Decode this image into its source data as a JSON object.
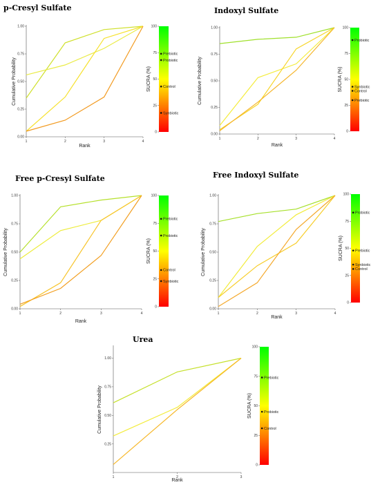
{
  "colors": {
    "gradient_top": "#00ff00",
    "gradient_mid": "#ffff00",
    "gradient_bottom": "#ff0000",
    "dot": "#111111"
  },
  "chart_data": [
    {
      "type": "line",
      "title": "p-Cresyl Sulfate",
      "xlabel": "Rank",
      "ylabel": "Cumulative Probability",
      "x": [
        1,
        2,
        3,
        4
      ],
      "xlim": [
        1,
        4
      ],
      "ylim": [
        0,
        1
      ],
      "x_ticks": [
        "1",
        "2",
        "3",
        "4"
      ],
      "y_ticks": [
        "0.00",
        "0.25",
        "0.50",
        "0.75",
        "1.00"
      ],
      "series": [
        {
          "values": [
            0.35,
            0.85,
            0.97,
            1.0
          ],
          "color": "#cfe02a"
        },
        {
          "values": [
            0.56,
            0.65,
            0.8,
            1.0
          ],
          "color": "#eaeb45"
        },
        {
          "values": [
            0.05,
            0.36,
            0.89,
            1.0
          ],
          "color": "#f6e12c"
        },
        {
          "values": [
            0.05,
            0.15,
            0.36,
            1.0
          ],
          "color": "#f29a1f"
        }
      ],
      "sucra": {
        "label": "SUCRA (%)",
        "ticks": [
          "0",
          "25",
          "50",
          "75",
          "100"
        ],
        "points": [
          {
            "name": "Prebiotic",
            "value": 74
          },
          {
            "name": "Probiotic",
            "value": 68
          },
          {
            "name": "Control",
            "value": 43
          },
          {
            "name": "Synbiotic",
            "value": 18
          }
        ]
      }
    },
    {
      "type": "line",
      "title": "Indoxyl Sulfate",
      "xlabel": "Rank",
      "ylabel": "Cumulative Probability",
      "x": [
        1,
        2,
        3,
        4
      ],
      "xlim": [
        1,
        4
      ],
      "ylim": [
        0,
        1
      ],
      "x_ticks": [
        "1",
        "2",
        "3",
        "4"
      ],
      "y_ticks": [
        "0.00",
        "0.25",
        "0.50",
        "0.75",
        "1.00"
      ],
      "series": [
        {
          "values": [
            0.85,
            0.89,
            0.91,
            1.0
          ],
          "color": "#9fe02a"
        },
        {
          "values": [
            0.08,
            0.53,
            0.66,
            1.0
          ],
          "color": "#f4ec3a"
        },
        {
          "values": [
            0.04,
            0.28,
            0.8,
            1.0
          ],
          "color": "#f7d52a"
        },
        {
          "values": [
            0.03,
            0.3,
            0.6,
            1.0
          ],
          "color": "#f5b52a"
        }
      ],
      "sucra": {
        "label": "SUCRA (%)",
        "ticks": [
          "0",
          "25",
          "50",
          "75",
          "100"
        ],
        "points": [
          {
            "name": "Probiotic",
            "value": 88
          },
          {
            "name": "Synbiotic",
            "value": 43
          },
          {
            "name": "Control",
            "value": 39
          },
          {
            "name": "Prebiotic",
            "value": 30
          }
        ]
      }
    },
    {
      "type": "line",
      "title": "Free p-Cresyl Sulfate",
      "xlabel": "Rank",
      "ylabel": "Cumulative Probability",
      "x": [
        1,
        2,
        3,
        4
      ],
      "xlim": [
        1,
        4
      ],
      "ylim": [
        0,
        1
      ],
      "x_ticks": [
        "1",
        "2",
        "3",
        "4"
      ],
      "y_ticks": [
        "0.00",
        "0.25",
        "0.50",
        "0.75",
        "1.00"
      ],
      "series": [
        {
          "values": [
            0.5,
            0.9,
            0.96,
            1.0
          ],
          "color": "#b5e02a"
        },
        {
          "values": [
            0.44,
            0.69,
            0.78,
            1.0
          ],
          "color": "#edec3a"
        },
        {
          "values": [
            0.02,
            0.23,
            0.78,
            1.0
          ],
          "color": "#f7c42a"
        },
        {
          "values": [
            0.04,
            0.18,
            0.47,
            1.0
          ],
          "color": "#f29e1f"
        }
      ],
      "sucra": {
        "label": "SUCRA (%)",
        "ticks": [
          "0",
          "25",
          "50",
          "75",
          "100"
        ],
        "points": [
          {
            "name": "Prebiotic",
            "value": 79
          },
          {
            "name": "Probiotic",
            "value": 64
          },
          {
            "name": "Control",
            "value": 33
          },
          {
            "name": "Synbiotic",
            "value": 23
          }
        ]
      }
    },
    {
      "type": "line",
      "title": "Free Indoxyl Sulfate",
      "xlabel": "Rank",
      "ylabel": "Cumulative Probability",
      "x": [
        1,
        2,
        3,
        4
      ],
      "xlim": [
        1,
        4
      ],
      "ylim": [
        0,
        1
      ],
      "x_ticks": [
        "1",
        "2",
        "3",
        "4"
      ],
      "y_ticks": [
        "0.00",
        "0.25",
        "0.50",
        "0.75",
        "1.00"
      ],
      "series": [
        {
          "values": [
            0.77,
            0.84,
            0.88,
            1.0
          ],
          "color": "#a6e02a"
        },
        {
          "values": [
            0.1,
            0.55,
            0.83,
            1.0
          ],
          "color": "#f2ec3a"
        },
        {
          "values": [
            0.1,
            0.38,
            0.58,
            1.0
          ],
          "color": "#f7cd2a"
        },
        {
          "values": [
            0.02,
            0.23,
            0.7,
            1.0
          ],
          "color": "#f4a82a"
        }
      ],
      "sucra": {
        "label": "SUCRA (%)",
        "ticks": [
          "0",
          "25",
          "50",
          "75",
          "100"
        ],
        "points": [
          {
            "name": "Probiotic",
            "value": 83
          },
          {
            "name": "Prebiotic",
            "value": 48
          },
          {
            "name": "Synbiotic",
            "value": 35
          },
          {
            "name": "Control",
            "value": 31
          }
        ]
      }
    },
    {
      "type": "line",
      "title": "Urea",
      "xlabel": "Rank",
      "ylabel": "Cumulative Probability",
      "x": [
        1,
        2,
        3
      ],
      "xlim": [
        1,
        3
      ],
      "ylim": [
        0,
        1.1
      ],
      "x_ticks": [
        "1",
        "2",
        "3"
      ],
      "y_ticks": [
        "0.25",
        "0.50",
        "0.75",
        "1.00"
      ],
      "series": [
        {
          "values": [
            0.61,
            0.88,
            1.0
          ],
          "color": "#c5e02a"
        },
        {
          "values": [
            0.32,
            0.57,
            1.0
          ],
          "color": "#f3ec3a"
        },
        {
          "values": [
            0.07,
            0.55,
            1.0
          ],
          "color": "#f7b82a"
        }
      ],
      "sucra": {
        "label": "SUCRA (%)",
        "ticks": [
          "0",
          "25",
          "50",
          "75",
          "100"
        ],
        "points": [
          {
            "name": "Prebiotic",
            "value": 74
          },
          {
            "name": "Probiotic",
            "value": 45
          },
          {
            "name": "Control",
            "value": 31
          }
        ]
      }
    }
  ]
}
